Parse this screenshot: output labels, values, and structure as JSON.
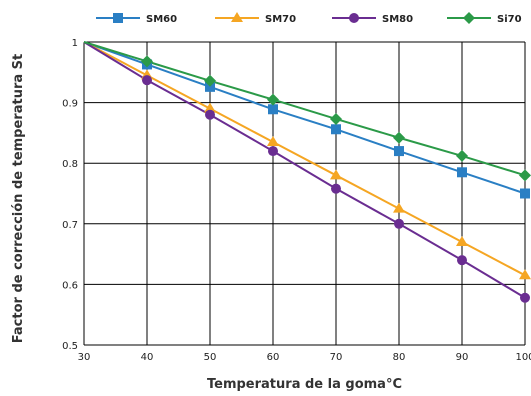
{
  "chart_data": {
    "type": "line",
    "title": "",
    "xlabel": "Temperatura de la goma°C",
    "ylabel": "Factor de corrección de temperatura St",
    "x": [
      30,
      40,
      50,
      60,
      70,
      80,
      90,
      100
    ],
    "xlim": [
      30,
      100
    ],
    "ylim": [
      0.5,
      1
    ],
    "x_ticks": [
      "30",
      "40",
      "50",
      "60",
      "70",
      "80",
      "90",
      "100"
    ],
    "y_ticks": [
      "0.5",
      "0.6",
      "0.7",
      "0.8",
      "0.9",
      "1"
    ],
    "y_tick_values": [
      0.5,
      0.6,
      0.7,
      0.8,
      0.9,
      1
    ],
    "grid": true,
    "legend_position": "top",
    "series": [
      {
        "name": "SM60",
        "color": "#2a7fc4",
        "marker": "square",
        "values": [
          1.0,
          0.963,
          0.926,
          0.889,
          0.856,
          0.82,
          0.785,
          0.75
        ]
      },
      {
        "name": "SM70",
        "color": "#f5a623",
        "marker": "triangle",
        "values": [
          1.0,
          0.945,
          0.89,
          0.835,
          0.78,
          0.725,
          0.67,
          0.615
        ]
      },
      {
        "name": "SM80",
        "color": "#6a2d91",
        "marker": "circle",
        "values": [
          1.0,
          0.937,
          0.88,
          0.82,
          0.758,
          0.7,
          0.64,
          0.578
        ]
      },
      {
        "name": "Si70",
        "color": "#2b9a48",
        "marker": "diamond",
        "values": [
          1.0,
          0.968,
          0.936,
          0.905,
          0.873,
          0.842,
          0.812,
          0.78
        ]
      }
    ]
  }
}
